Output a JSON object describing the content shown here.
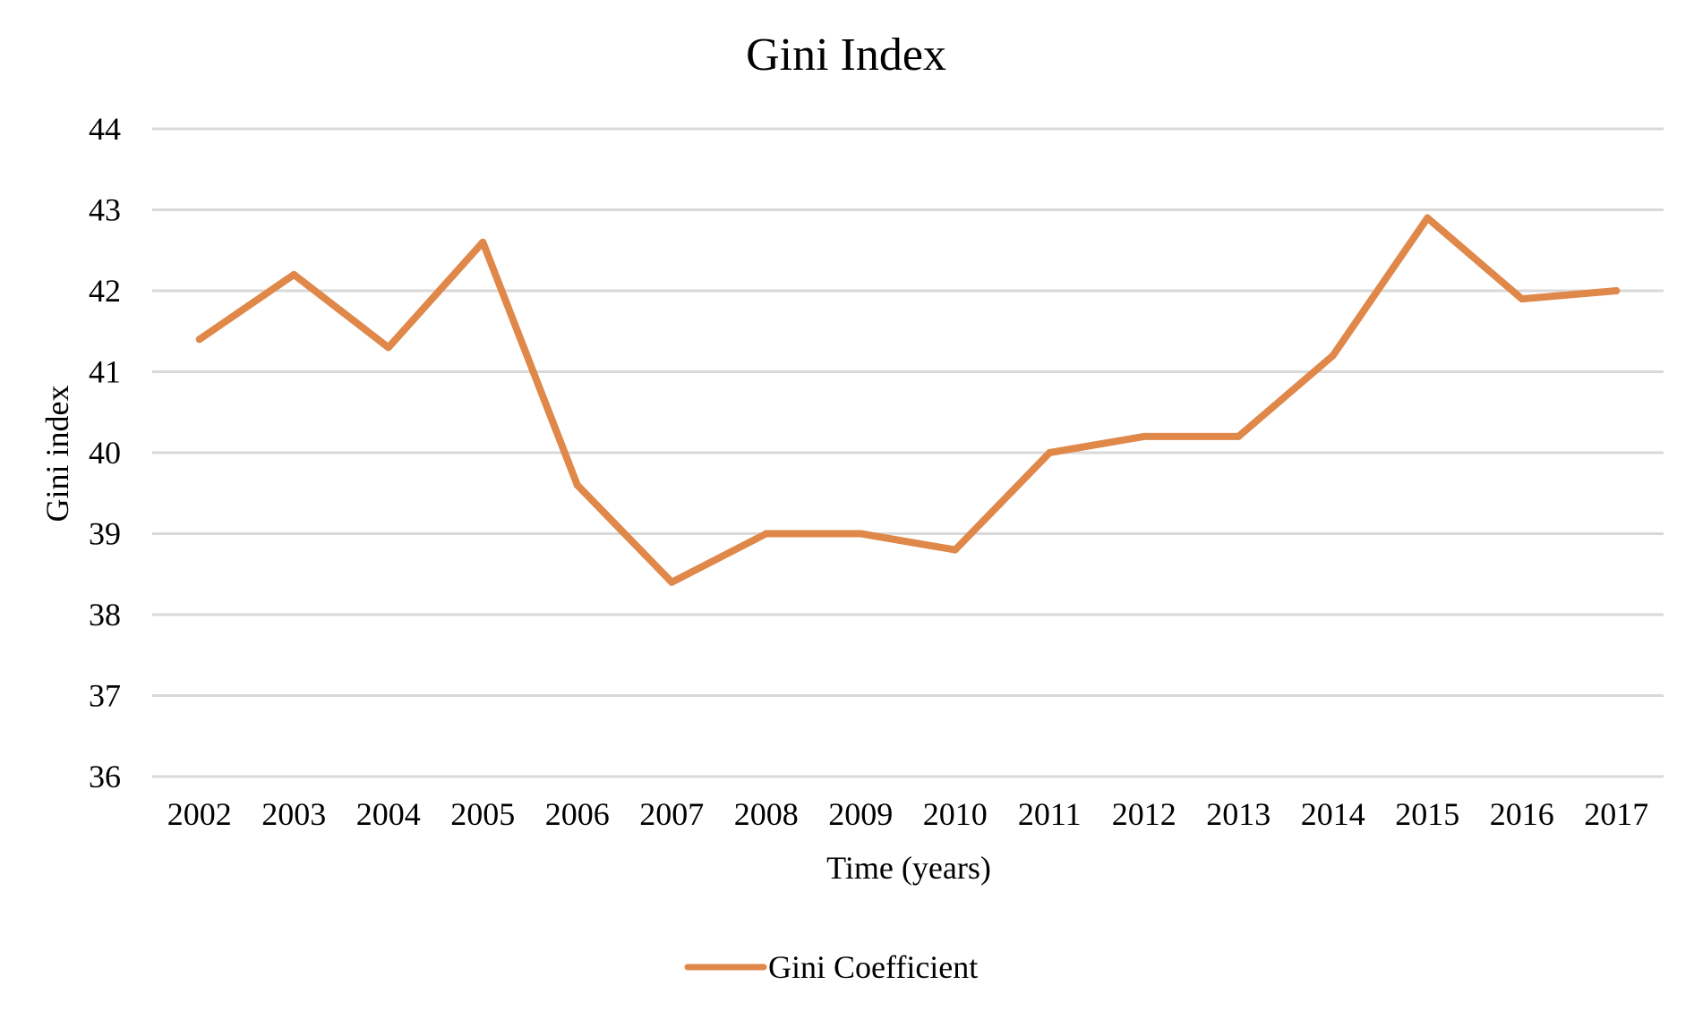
{
  "chart_data": {
    "type": "line",
    "title": "Gini Index",
    "xlabel": "Time (years)",
    "ylabel": "Gini index",
    "categories": [
      "2002",
      "2003",
      "2004",
      "2005",
      "2006",
      "2007",
      "2008",
      "2009",
      "2010",
      "2011",
      "2012",
      "2013",
      "2014",
      "2015",
      "2016",
      "2017"
    ],
    "series": [
      {
        "name": "Gini Coefficient",
        "color": "#E0874A",
        "values": [
          41.4,
          42.2,
          41.3,
          42.6,
          39.6,
          38.4,
          39.0,
          39.0,
          38.8,
          40.0,
          40.2,
          40.2,
          41.2,
          42.9,
          41.9,
          42.0
        ]
      }
    ],
    "ylim": [
      36,
      44
    ],
    "yticks": [
      "36",
      "37",
      "38",
      "39",
      "40",
      "41",
      "42",
      "43",
      "44"
    ],
    "grid": true,
    "gridColor": "#D9D9D9",
    "legend_position": "bottom-center"
  }
}
